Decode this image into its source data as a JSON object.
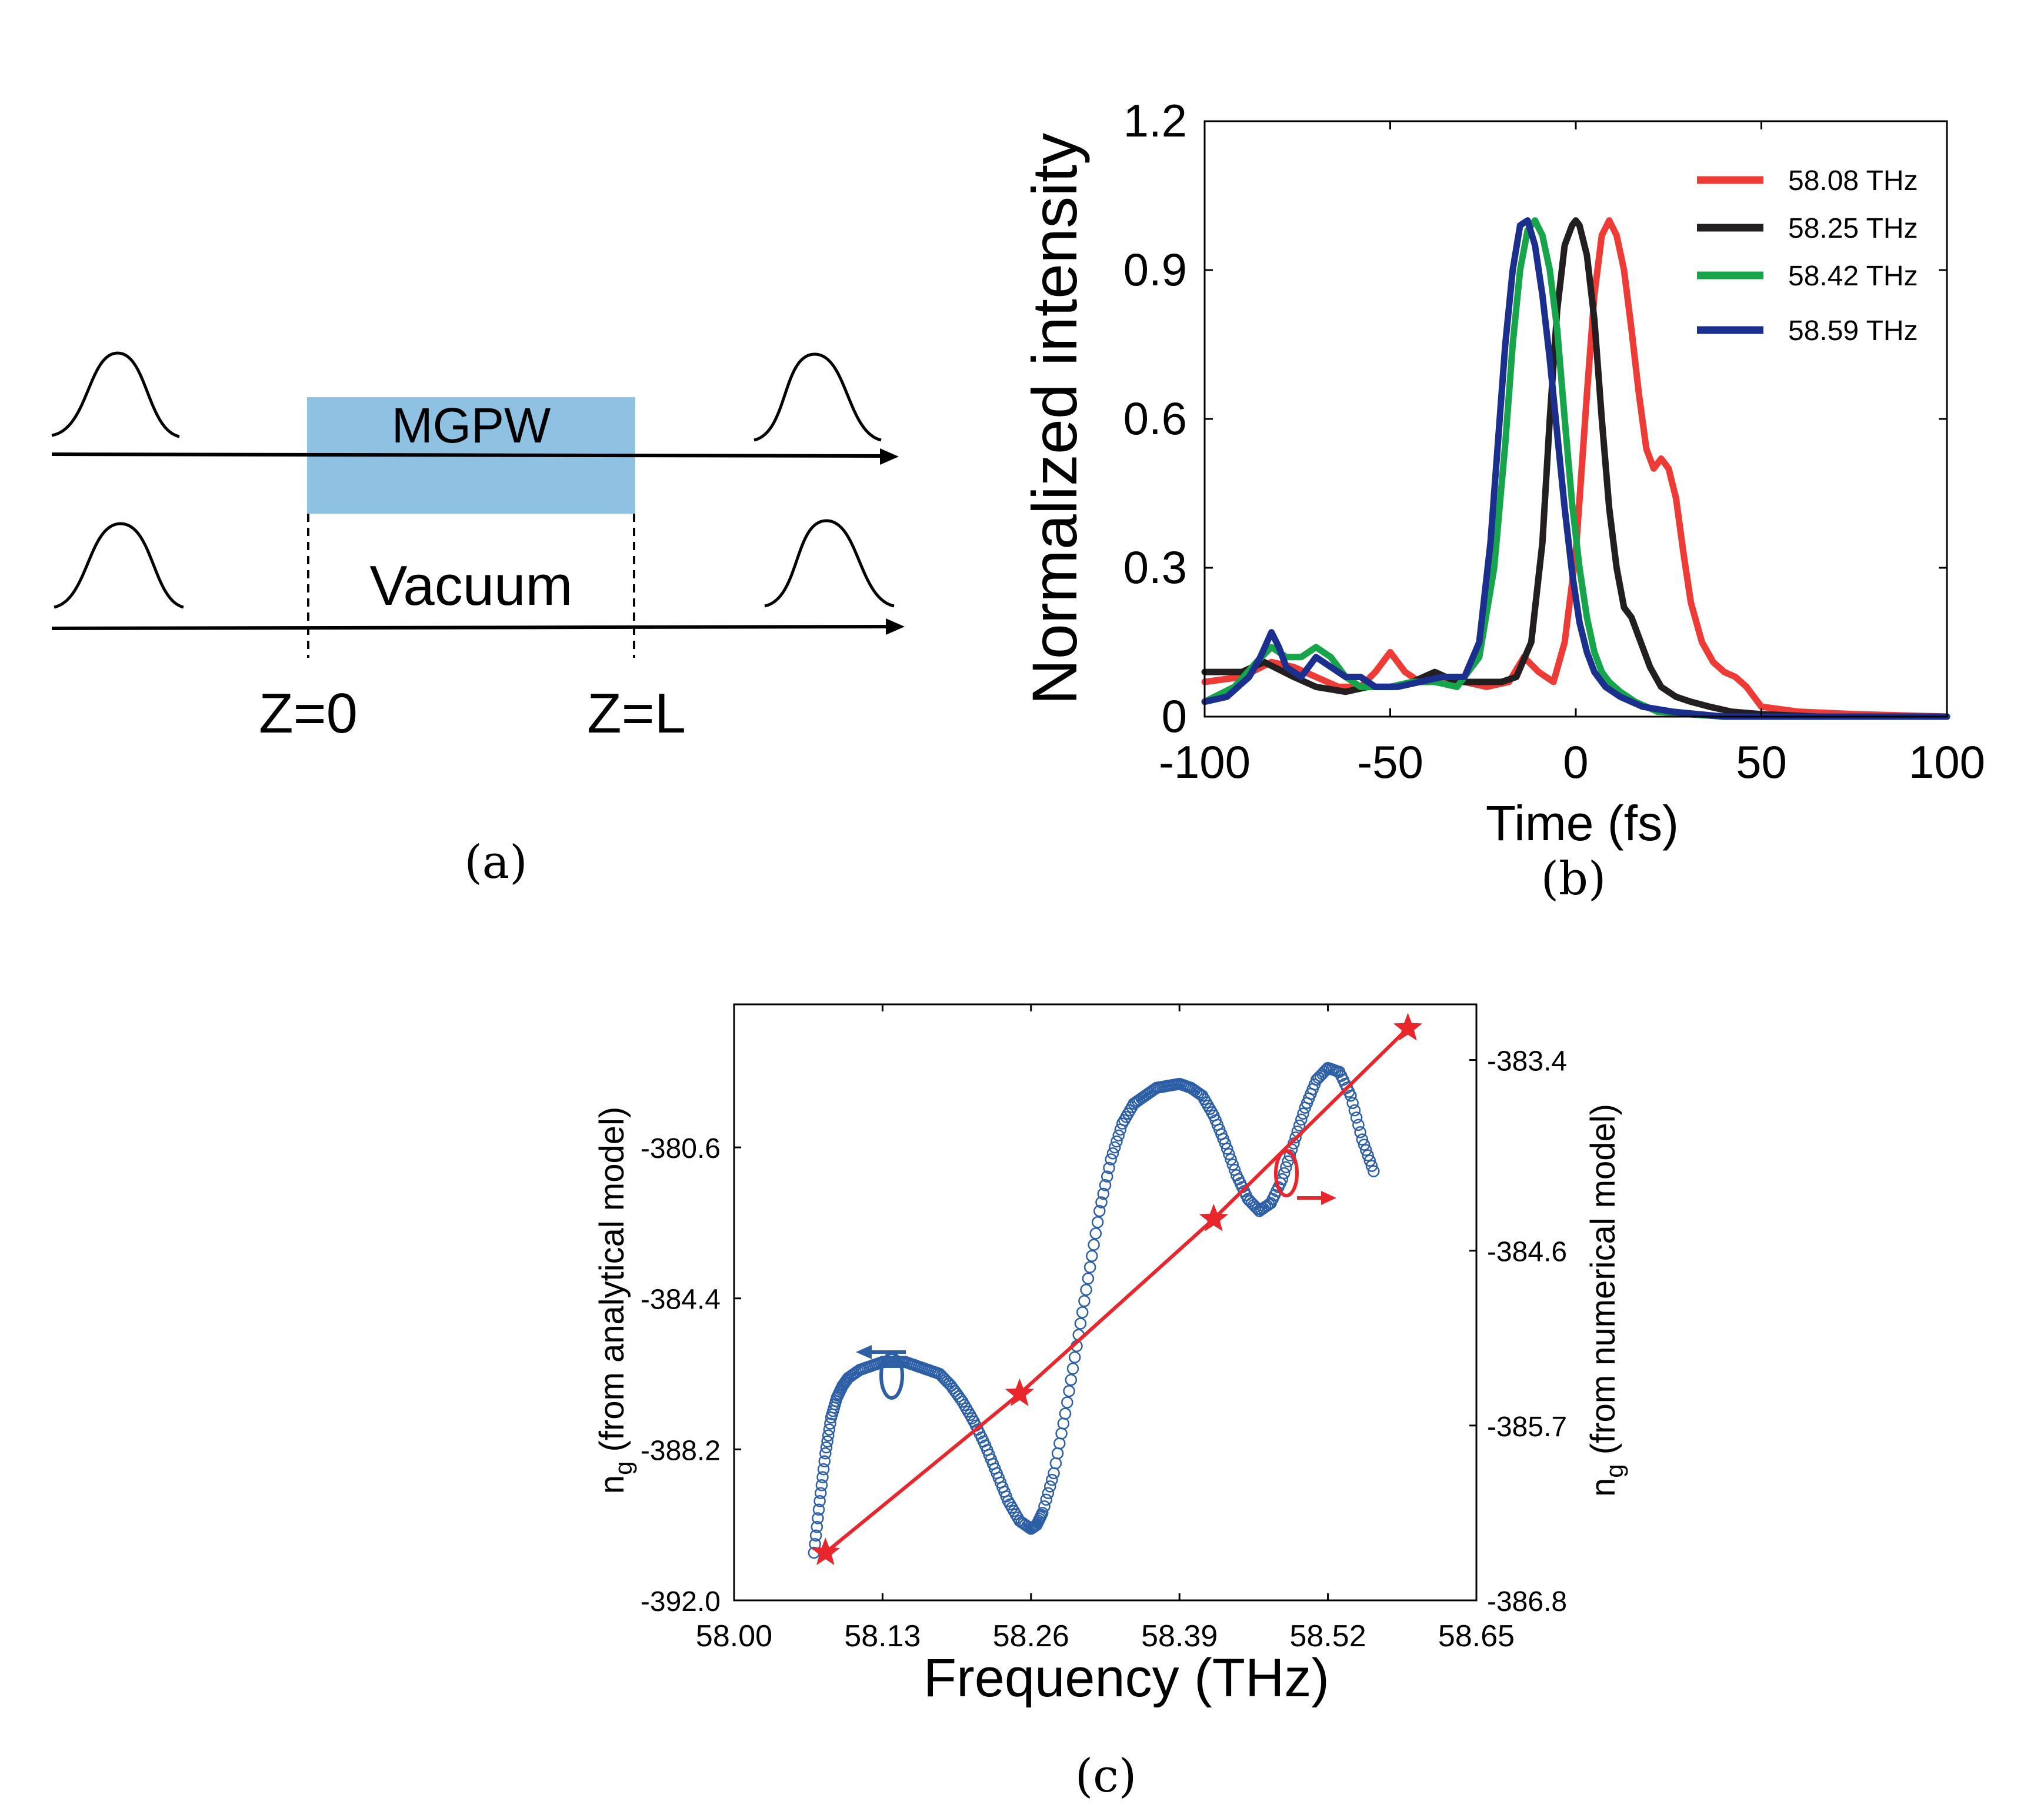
{
  "panel_a": {
    "box_label": "MGPW",
    "vacuum_label": "Vacuum",
    "z0_label": "Z=0",
    "zl_label": "Z=L",
    "caption": "(a)",
    "box_color": "#8fc1e3"
  },
  "chart_data": [
    {
      "id": "b",
      "type": "line",
      "caption": "(b)",
      "xlabel": "Time (fs)",
      "ylabel": "Normalized intensity",
      "xlim": [
        -100,
        100
      ],
      "ylim": [
        0,
        1.2
      ],
      "xticks": [
        -100,
        -50,
        0,
        50,
        100
      ],
      "yticks": [
        0,
        0.3,
        0.6,
        0.9,
        1.2
      ],
      "ytick_labels": [
        "0",
        "0.3",
        "0.6",
        "0.9",
        "1.2"
      ],
      "legend_position": "top-right",
      "series": [
        {
          "name": "58.08 THz",
          "color": "#ef3b36",
          "x": [
            -100,
            -90,
            -82,
            -76,
            -70,
            -64,
            -58,
            -54,
            -50,
            -46,
            -42,
            -36,
            -30,
            -24,
            -18,
            -14,
            -10,
            -6,
            -3,
            0,
            3,
            5,
            7,
            9,
            11,
            13,
            15,
            17,
            19,
            21,
            23,
            25,
            27,
            29,
            31,
            34,
            37,
            40,
            43,
            46,
            50,
            60,
            75,
            100
          ],
          "y": [
            0.07,
            0.08,
            0.11,
            0.1,
            0.08,
            0.06,
            0.06,
            0.09,
            0.13,
            0.09,
            0.07,
            0.07,
            0.07,
            0.06,
            0.07,
            0.12,
            0.09,
            0.07,
            0.15,
            0.33,
            0.65,
            0.85,
            0.97,
            1.0,
            0.97,
            0.9,
            0.78,
            0.65,
            0.54,
            0.5,
            0.52,
            0.5,
            0.44,
            0.33,
            0.23,
            0.15,
            0.11,
            0.09,
            0.08,
            0.06,
            0.02,
            0.01,
            0.005,
            0.0
          ]
        },
        {
          "name": "58.25 THz",
          "color": "#231f20",
          "x": [
            -100,
            -90,
            -84,
            -76,
            -70,
            -62,
            -56,
            -50,
            -44,
            -38,
            -32,
            -26,
            -20,
            -16,
            -12,
            -9,
            -7,
            -5,
            -3,
            -1,
            0,
            1,
            3,
            5,
            7,
            9,
            11,
            13,
            15,
            17,
            20,
            23,
            27,
            31,
            36,
            42,
            50,
            65,
            80,
            100
          ],
          "y": [
            0.09,
            0.09,
            0.11,
            0.08,
            0.06,
            0.05,
            0.06,
            0.06,
            0.07,
            0.09,
            0.07,
            0.07,
            0.07,
            0.08,
            0.15,
            0.35,
            0.6,
            0.82,
            0.95,
            0.99,
            1.0,
            0.99,
            0.93,
            0.8,
            0.6,
            0.42,
            0.3,
            0.22,
            0.2,
            0.16,
            0.1,
            0.06,
            0.04,
            0.03,
            0.02,
            0.01,
            0.005,
            0.0,
            0.0,
            0.0
          ]
        },
        {
          "name": "58.42 THz",
          "color": "#16a54a",
          "x": [
            -100,
            -92,
            -86,
            -82,
            -78,
            -74,
            -70,
            -66,
            -62,
            -58,
            -54,
            -50,
            -44,
            -38,
            -32,
            -26,
            -22,
            -19,
            -17,
            -15,
            -13,
            -11,
            -9,
            -7,
            -5,
            -3,
            -1,
            1,
            3,
            5,
            7,
            9,
            12,
            16,
            22,
            30,
            40,
            60,
            80,
            100
          ],
          "y": [
            0.03,
            0.06,
            0.11,
            0.14,
            0.12,
            0.12,
            0.14,
            0.12,
            0.08,
            0.06,
            0.06,
            0.06,
            0.07,
            0.07,
            0.06,
            0.12,
            0.3,
            0.55,
            0.75,
            0.9,
            0.98,
            1.0,
            0.97,
            0.9,
            0.78,
            0.6,
            0.43,
            0.3,
            0.2,
            0.13,
            0.09,
            0.07,
            0.05,
            0.03,
            0.01,
            0.005,
            0.0,
            0.0,
            0.0,
            0.0
          ]
        },
        {
          "name": "58.59 THz",
          "color": "#1b2f8f",
          "x": [
            -100,
            -94,
            -88,
            -85,
            -82,
            -80,
            -78,
            -74,
            -70,
            -66,
            -62,
            -58,
            -54,
            -48,
            -42,
            -36,
            -30,
            -26,
            -23,
            -21,
            -19,
            -17,
            -15,
            -13,
            -11,
            -9,
            -7,
            -5,
            -3,
            -1,
            1,
            3,
            5,
            8,
            12,
            18,
            26,
            40,
            60,
            100
          ],
          "y": [
            0.03,
            0.04,
            0.08,
            0.12,
            0.17,
            0.14,
            0.1,
            0.08,
            0.12,
            0.1,
            0.08,
            0.08,
            0.06,
            0.06,
            0.07,
            0.08,
            0.08,
            0.15,
            0.35,
            0.55,
            0.75,
            0.9,
            0.99,
            1.0,
            0.95,
            0.85,
            0.72,
            0.57,
            0.42,
            0.29,
            0.19,
            0.13,
            0.09,
            0.06,
            0.04,
            0.02,
            0.01,
            0.0,
            0.0,
            0.0
          ]
        }
      ]
    },
    {
      "id": "c",
      "type": "scatter",
      "caption": "(c)",
      "xlabel": "Frequency (THz)",
      "ylabel_left": "n",
      "ylabel_left_sub": "g",
      "ylabel_left_rest": " (from analytical model)",
      "ylabel_right": "n",
      "ylabel_right_sub": "g",
      "ylabel_right_rest": " (from numerical model)",
      "xlim": [
        58.0,
        58.65
      ],
      "xticks": [
        "58.00",
        "58.13",
        "58.26",
        "58.39",
        "58.52",
        "58.65"
      ],
      "ylim_left": [
        -392.0,
        -377.0
      ],
      "yticks_left": [
        "-392.0",
        "-388.2",
        "-384.4",
        "-380.6"
      ],
      "ylim_right": [
        -386.8,
        -383.05
      ],
      "yticks_right": [
        "-386.8",
        "-385.7",
        "-384.6",
        "-383.4"
      ],
      "series": [
        {
          "name": "analytical",
          "axis": "left",
          "color": "#2c5fa6",
          "marker": "open-circle",
          "x": [
            58.07,
            58.075,
            58.08,
            58.085,
            58.09,
            58.095,
            58.1,
            58.11,
            58.12,
            58.13,
            58.14,
            58.15,
            58.16,
            58.17,
            58.18,
            58.19,
            58.2,
            58.21,
            58.22,
            58.23,
            58.24,
            58.25,
            58.26,
            58.265,
            58.27,
            58.28,
            58.29,
            58.3,
            58.31,
            58.32,
            58.33,
            58.34,
            58.35,
            58.36,
            58.37,
            58.38,
            58.39,
            58.4,
            58.41,
            58.42,
            58.43,
            58.44,
            58.45,
            58.46,
            58.47,
            58.48,
            58.49,
            58.5,
            58.51,
            58.52,
            58.53,
            58.54,
            58.55,
            58.56
          ],
          "y": [
            -390.8,
            -389.5,
            -388.3,
            -387.4,
            -386.9,
            -386.6,
            -386.4,
            -386.2,
            -386.1,
            -386.0,
            -386.0,
            -386.0,
            -386.1,
            -386.2,
            -386.3,
            -386.6,
            -387.0,
            -387.5,
            -388.1,
            -388.8,
            -389.5,
            -390.0,
            -390.2,
            -390.1,
            -389.8,
            -388.8,
            -387.3,
            -385.6,
            -383.9,
            -382.2,
            -380.9,
            -380.0,
            -379.5,
            -379.3,
            -379.1,
            -379.05,
            -379.0,
            -379.1,
            -379.3,
            -379.8,
            -380.5,
            -381.3,
            -381.9,
            -382.2,
            -382.0,
            -381.4,
            -380.5,
            -379.6,
            -378.9,
            -378.6,
            -378.7,
            -379.3,
            -380.4,
            -381.2
          ]
        },
        {
          "name": "numerical",
          "axis": "right",
          "color": "#e8262c",
          "marker": "star",
          "x": [
            58.08,
            58.25,
            58.42,
            58.59
          ],
          "y": [
            -386.5,
            -385.5,
            -384.4,
            -383.2
          ]
        }
      ]
    }
  ]
}
